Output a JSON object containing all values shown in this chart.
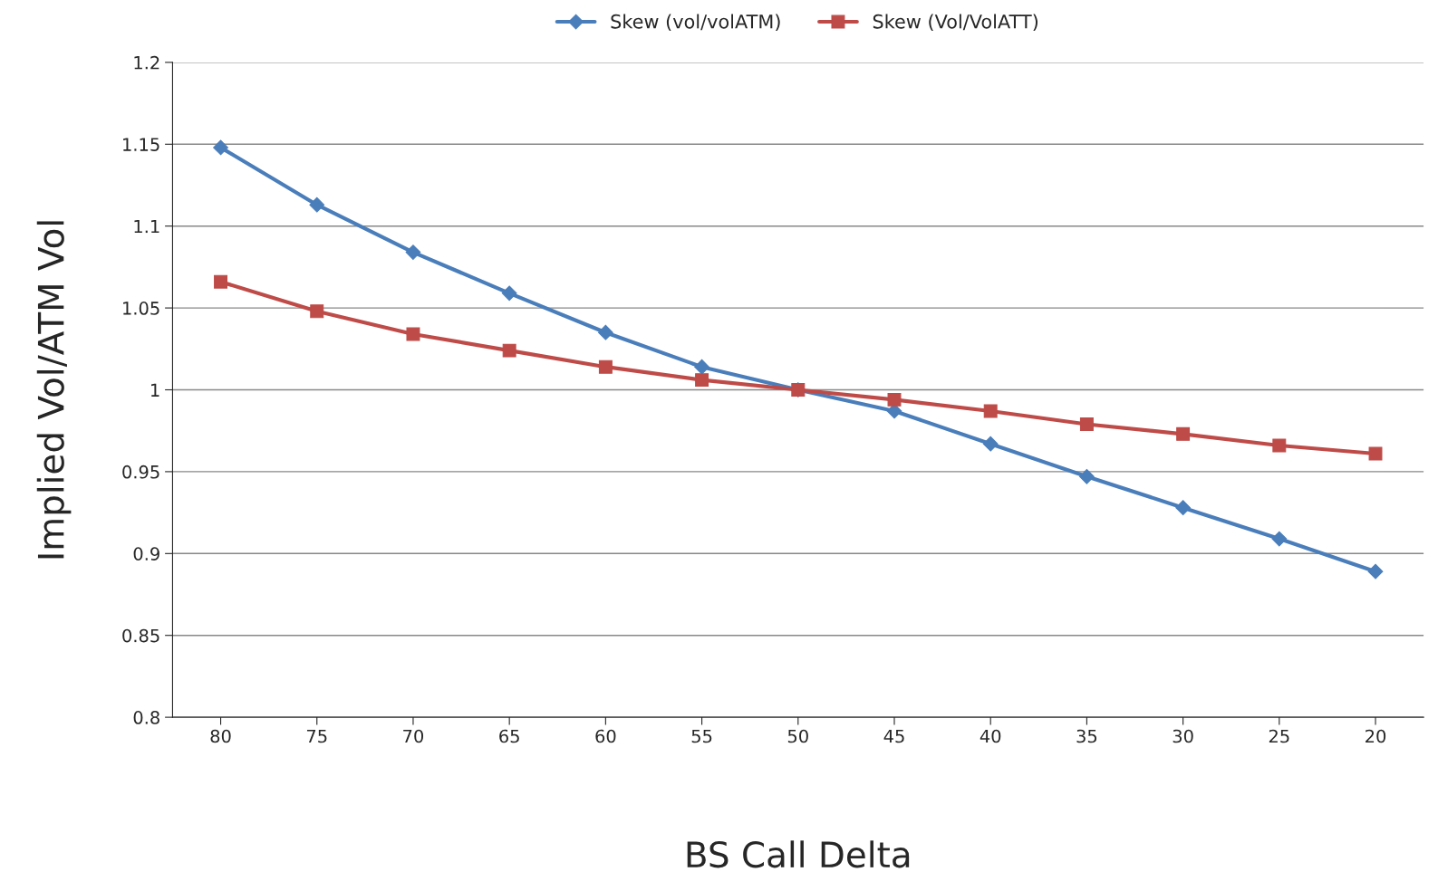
{
  "chart_data": {
    "type": "line",
    "xlabel": "BS Call Delta",
    "ylabel": "Implied Vol/ATM Vol",
    "categories": [
      "80",
      "75",
      "70",
      "65",
      "60",
      "55",
      "50",
      "45",
      "40",
      "35",
      "30",
      "25",
      "20"
    ],
    "series": [
      {
        "name": "Skew (vol/volATM)",
        "color": "#4a7ebb",
        "marker": "diamond",
        "values": [
          1.148,
          1.113,
          1.084,
          1.059,
          1.035,
          1.014,
          1.0,
          0.987,
          0.967,
          0.947,
          0.928,
          0.909,
          0.889
        ]
      },
      {
        "name": "Skew (Vol/VolATT)",
        "color": "#be4b48",
        "marker": "square",
        "values": [
          1.066,
          1.048,
          1.034,
          1.024,
          1.014,
          1.006,
          1.0,
          0.994,
          0.987,
          0.979,
          0.973,
          0.966,
          0.961
        ]
      }
    ],
    "ylim": [
      0.8,
      1.2
    ],
    "yticks": [
      0.8,
      0.85,
      0.9,
      0.95,
      1,
      1.05,
      1.1,
      1.15,
      1.2
    ],
    "grid": "y",
    "legend": "top",
    "line_style": "solid"
  }
}
